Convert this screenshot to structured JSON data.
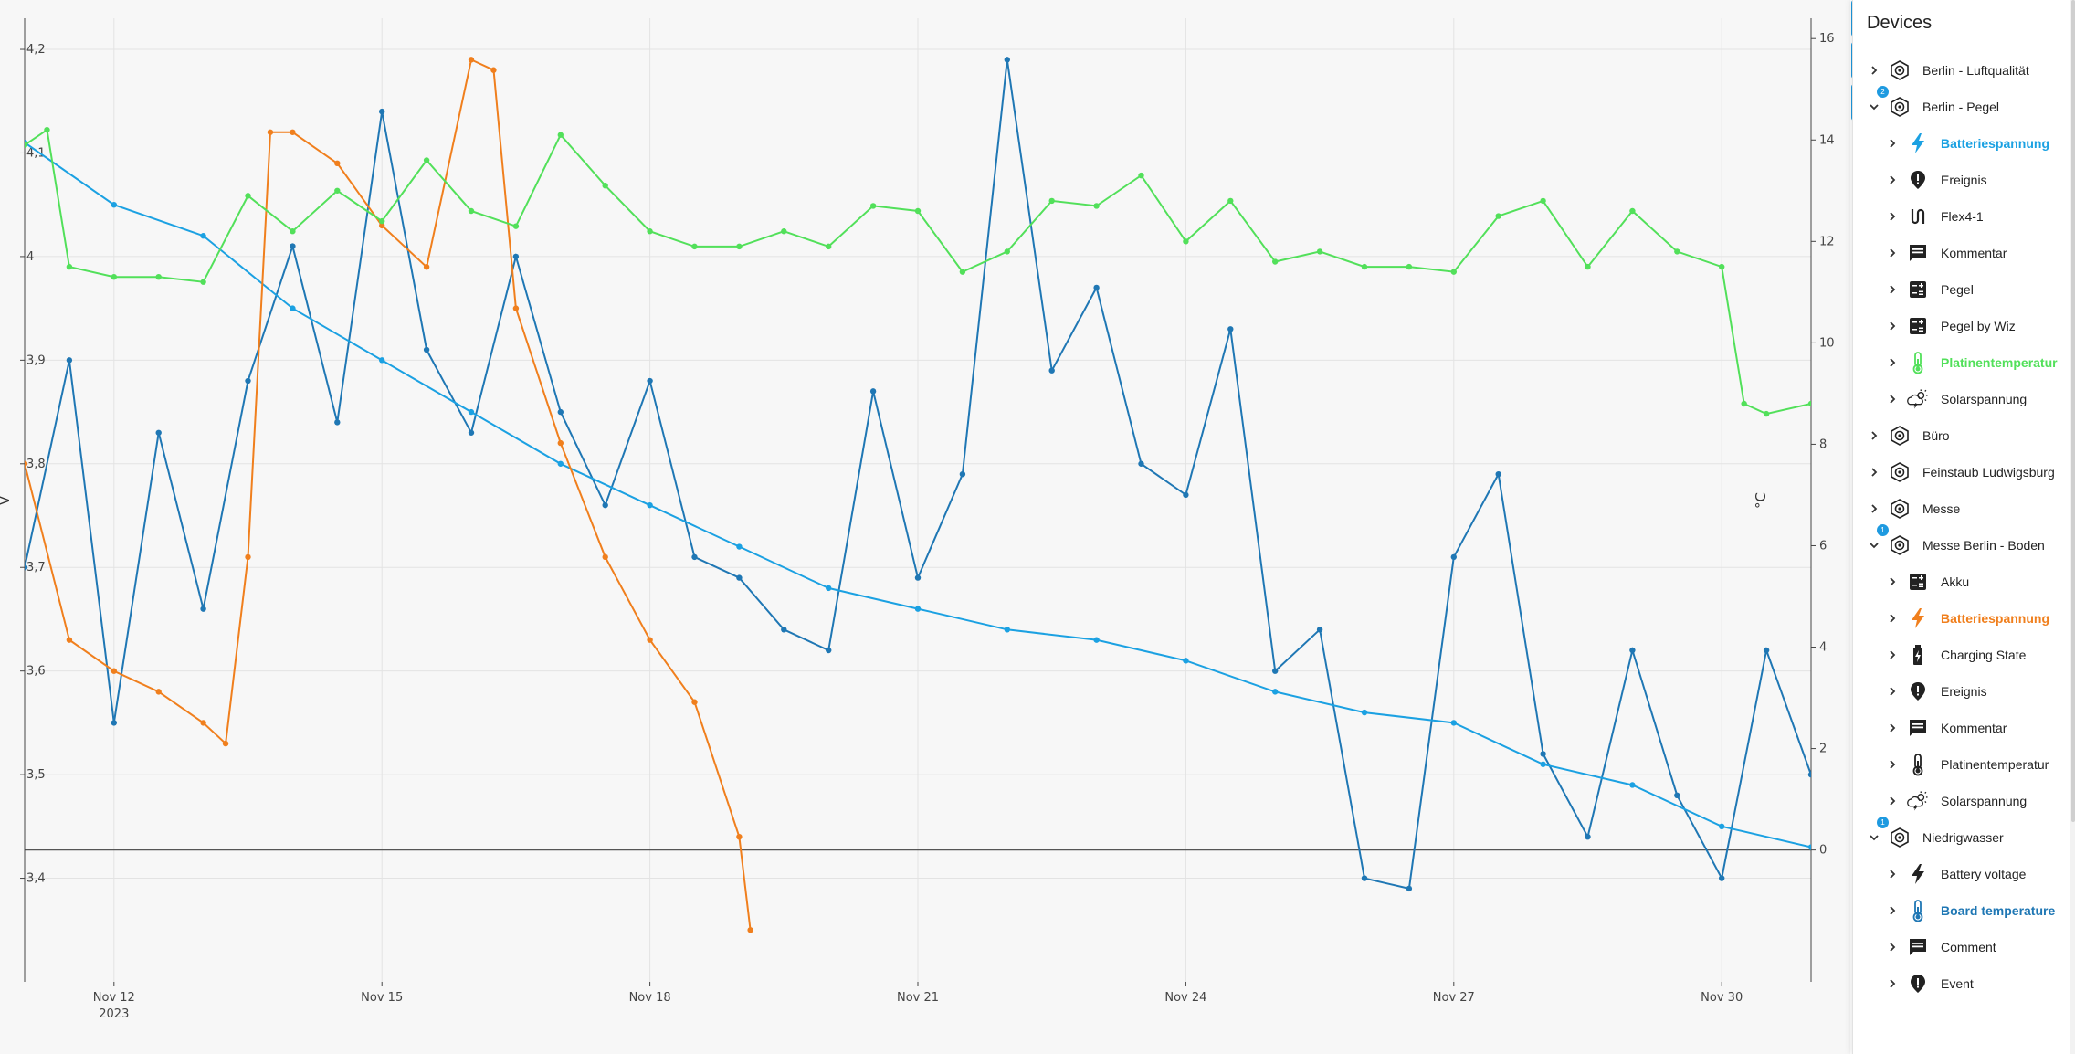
{
  "chart_data": {
    "type": "line",
    "x_axis": {
      "ticks": [
        {
          "date": "2023-11-12",
          "label": "Nov 12",
          "sublabel": "2023"
        },
        {
          "date": "2023-11-15",
          "label": "Nov 15",
          "sublabel": ""
        },
        {
          "date": "2023-11-18",
          "label": "Nov 18",
          "sublabel": ""
        },
        {
          "date": "2023-11-21",
          "label": "Nov 21",
          "sublabel": ""
        },
        {
          "date": "2023-11-24",
          "label": "Nov 24",
          "sublabel": ""
        },
        {
          "date": "2023-11-27",
          "label": "Nov 27",
          "sublabel": ""
        },
        {
          "date": "2023-11-30",
          "label": "Nov 30",
          "sublabel": ""
        }
      ],
      "range": [
        "2023-11-11",
        "2023-12-01"
      ]
    },
    "y_left": {
      "label": "V",
      "ticks": [
        "4,2",
        "4,1",
        "4",
        "3,9",
        "3,8",
        "3,7",
        "3,6",
        "3,5",
        "3,4"
      ],
      "tick_values": [
        4.2,
        4.1,
        4.0,
        3.9,
        3.8,
        3.7,
        3.6,
        3.5,
        3.4
      ],
      "range": [
        3.3,
        4.23
      ]
    },
    "y_right": {
      "label": "°C",
      "ticks": [
        "16",
        "14",
        "12",
        "10",
        "8",
        "6",
        "4",
        "2",
        "0"
      ],
      "tick_values": [
        16,
        14,
        12,
        10,
        8,
        6,
        4,
        2,
        0
      ],
      "range": [
        -2.6,
        16.4
      ]
    },
    "grid": true,
    "series": [
      {
        "color": "#1f77b4",
        "axis": "left",
        "x": [
          "2023-11-11 00:00",
          "2023-11-11 12:00",
          "2023-11-12 00:00",
          "2023-11-12 12:00",
          "2023-11-13 00:00",
          "2023-11-13 12:00",
          "2023-11-14 00:00",
          "2023-11-14 12:00",
          "2023-11-15 00:00",
          "2023-11-15 12:00",
          "2023-11-16 00:00",
          "2023-11-16 12:00",
          "2023-11-17 00:00",
          "2023-11-17 12:00",
          "2023-11-18 00:00",
          "2023-11-18 12:00",
          "2023-11-19 00:00",
          "2023-11-19 12:00",
          "2023-11-20 00:00",
          "2023-11-20 12:00",
          "2023-11-21 00:00",
          "2023-11-21 12:00",
          "2023-11-22 00:00",
          "2023-11-22 12:00",
          "2023-11-23 00:00",
          "2023-11-23 12:00",
          "2023-11-24 00:00",
          "2023-11-24 12:00",
          "2023-11-25 00:00",
          "2023-11-25 12:00",
          "2023-11-26 00:00",
          "2023-11-26 12:00",
          "2023-11-27 00:00",
          "2023-11-27 12:00",
          "2023-11-28 00:00",
          "2023-11-28 12:00",
          "2023-11-29 00:00",
          "2023-11-29 12:00",
          "2023-11-30 00:00",
          "2023-11-30 12:00",
          "2023-12-01 00:00"
        ],
        "y": [
          3.7,
          3.9,
          3.55,
          3.83,
          3.66,
          3.88,
          4.01,
          3.84,
          4.14,
          3.91,
          3.83,
          4.0,
          3.85,
          3.76,
          3.88,
          3.71,
          3.69,
          3.64,
          3.62,
          3.87,
          3.69,
          3.79,
          4.19,
          3.89,
          3.97,
          3.8,
          3.77,
          3.93,
          3.6,
          3.64,
          3.4,
          3.39,
          3.71,
          3.79,
          3.52,
          3.44,
          3.62,
          3.48,
          3.4,
          3.62,
          3.5
        ]
      },
      {
        "color": "#1ba1e2",
        "axis": "left",
        "x": [
          "2023-11-11 00:00",
          "2023-11-12 00:00",
          "2023-11-13 00:00",
          "2023-11-14 00:00",
          "2023-11-15 00:00",
          "2023-11-16 00:00",
          "2023-11-17 00:00",
          "2023-11-18 00:00",
          "2023-11-19 00:00",
          "2023-11-20 00:00",
          "2023-11-21 00:00",
          "2023-11-22 00:00",
          "2023-11-23 00:00",
          "2023-11-24 00:00",
          "2023-11-25 00:00",
          "2023-11-26 00:00",
          "2023-11-27 00:00",
          "2023-11-28 00:00",
          "2023-11-29 00:00",
          "2023-11-30 00:00",
          "2023-12-01 00:00"
        ],
        "y": [
          4.11,
          4.05,
          4.02,
          3.95,
          3.9,
          3.85,
          3.8,
          3.76,
          3.72,
          3.68,
          3.66,
          3.64,
          3.63,
          3.61,
          3.58,
          3.56,
          3.55,
          3.51,
          3.49,
          3.45,
          3.43
        ]
      },
      {
        "color": "#f07f1d",
        "axis": "left",
        "x": [
          "2023-11-11 00:00",
          "2023-11-11 12:00",
          "2023-11-12 00:00",
          "2023-11-12 12:00",
          "2023-11-13 00:00",
          "2023-11-13 06:00",
          "2023-11-13 12:00",
          "2023-11-13 18:00",
          "2023-11-14 00:00",
          "2023-11-14 12:00",
          "2023-11-15 00:00",
          "2023-11-15 12:00",
          "2023-11-16 00:00",
          "2023-11-16 06:00",
          "2023-11-16 12:00",
          "2023-11-17 00:00",
          "2023-11-17 12:00",
          "2023-11-18 00:00",
          "2023-11-18 12:00",
          "2023-11-19 00:00",
          "2023-11-19 03:00"
        ],
        "y": [
          3.8,
          3.63,
          3.6,
          3.58,
          3.55,
          3.53,
          3.71,
          4.12,
          4.12,
          4.09,
          4.03,
          3.99,
          4.19,
          4.18,
          3.95,
          3.82,
          3.71,
          3.63,
          3.57,
          3.44,
          3.35
        ]
      },
      {
        "color": "#52e05a",
        "axis": "right",
        "x": [
          "2023-11-11 00:00",
          "2023-11-11 06:00",
          "2023-11-11 12:00",
          "2023-11-12 00:00",
          "2023-11-12 12:00",
          "2023-11-13 00:00",
          "2023-11-13 12:00",
          "2023-11-14 00:00",
          "2023-11-14 12:00",
          "2023-11-15 00:00",
          "2023-11-15 12:00",
          "2023-11-16 00:00",
          "2023-11-16 12:00",
          "2023-11-17 00:00",
          "2023-11-17 12:00",
          "2023-11-18 00:00",
          "2023-11-18 12:00",
          "2023-11-19 00:00",
          "2023-11-19 12:00",
          "2023-11-20 00:00",
          "2023-11-20 12:00",
          "2023-11-21 00:00",
          "2023-11-21 12:00",
          "2023-11-22 00:00",
          "2023-11-22 12:00",
          "2023-11-23 00:00",
          "2023-11-23 12:00",
          "2023-11-24 00:00",
          "2023-11-24 12:00",
          "2023-11-25 00:00",
          "2023-11-25 12:00",
          "2023-11-26 00:00",
          "2023-11-26 12:00",
          "2023-11-27 00:00",
          "2023-11-27 12:00",
          "2023-11-28 00:00",
          "2023-11-28 12:00",
          "2023-11-29 00:00",
          "2023-11-29 12:00",
          "2023-11-30 00:00",
          "2023-11-30 06:00",
          "2023-11-30 12:00",
          "2023-12-01 00:00"
        ],
        "y": [
          13.9,
          14.2,
          11.5,
          11.3,
          11.3,
          11.2,
          12.9,
          12.2,
          13.0,
          12.4,
          13.6,
          12.6,
          12.3,
          14.1,
          13.1,
          12.2,
          11.9,
          11.9,
          12.2,
          11.9,
          12.7,
          12.6,
          11.4,
          11.8,
          12.8,
          12.7,
          13.3,
          12.0,
          12.8,
          11.6,
          11.8,
          11.5,
          11.5,
          11.4,
          12.5,
          12.8,
          11.5,
          12.6,
          11.8,
          11.5,
          8.8,
          8.6,
          8.8
        ]
      }
    ]
  },
  "toolbar": {
    "buttons": [
      {
        "name": "filter-icon"
      },
      {
        "name": "list-icon"
      },
      {
        "name": "more-vert-icon"
      }
    ]
  },
  "devices_panel": {
    "title": "Devices",
    "items": [
      {
        "label": "Berlin - Luftqualität",
        "level": 0,
        "expanded": false,
        "icon": "device-icon",
        "badge": "",
        "color": "#222222",
        "bold": false
      },
      {
        "label": "Berlin - Pegel",
        "level": 0,
        "expanded": true,
        "icon": "device-icon",
        "badge": "2",
        "color": "#222222",
        "bold": false
      },
      {
        "label": "Batteriespannung",
        "level": 1,
        "expanded": false,
        "icon": "bolt-icon",
        "badge": "",
        "color": "#1ba1e2",
        "bold": true
      },
      {
        "label": "Ereignis",
        "level": 1,
        "expanded": false,
        "icon": "alert-icon",
        "badge": "",
        "color": "#222222",
        "bold": false
      },
      {
        "label": "Flex4-1",
        "level": 1,
        "expanded": false,
        "icon": "flex-icon",
        "badge": "",
        "color": "#222222",
        "bold": false
      },
      {
        "label": "Kommentar",
        "level": 1,
        "expanded": false,
        "icon": "comment-icon",
        "badge": "",
        "color": "#222222",
        "bold": false
      },
      {
        "label": "Pegel",
        "level": 1,
        "expanded": false,
        "icon": "calc-icon",
        "badge": "",
        "color": "#222222",
        "bold": false
      },
      {
        "label": "Pegel by Wiz",
        "level": 1,
        "expanded": false,
        "icon": "calc-icon",
        "badge": "",
        "color": "#222222",
        "bold": false
      },
      {
        "label": "Platinentemperatur",
        "level": 1,
        "expanded": false,
        "icon": "thermometer-icon",
        "badge": "",
        "color": "#52e05a",
        "bold": true
      },
      {
        "label": "Solarspannung",
        "level": 1,
        "expanded": false,
        "icon": "weather-icon",
        "badge": "",
        "color": "#222222",
        "bold": false
      },
      {
        "label": "Büro",
        "level": 0,
        "expanded": false,
        "icon": "device-icon",
        "badge": "",
        "color": "#222222",
        "bold": false
      },
      {
        "label": "Feinstaub Ludwigsburg",
        "level": 0,
        "expanded": false,
        "icon": "device-icon",
        "badge": "",
        "color": "#222222",
        "bold": false
      },
      {
        "label": "Messe",
        "level": 0,
        "expanded": false,
        "icon": "device-icon",
        "badge": "",
        "color": "#222222",
        "bold": false
      },
      {
        "label": "Messe Berlin - Boden",
        "level": 0,
        "expanded": true,
        "icon": "device-icon",
        "badge": "1",
        "color": "#222222",
        "bold": false
      },
      {
        "label": "Akku",
        "level": 1,
        "expanded": false,
        "icon": "calc-icon",
        "badge": "",
        "color": "#222222",
        "bold": false
      },
      {
        "label": "Batteriespannung",
        "level": 1,
        "expanded": false,
        "icon": "bolt-icon",
        "badge": "",
        "color": "#f07f1d",
        "bold": true
      },
      {
        "label": "Charging State",
        "level": 1,
        "expanded": false,
        "icon": "battery-icon",
        "badge": "",
        "color": "#222222",
        "bold": false
      },
      {
        "label": "Ereignis",
        "level": 1,
        "expanded": false,
        "icon": "alert-icon",
        "badge": "",
        "color": "#222222",
        "bold": false
      },
      {
        "label": "Kommentar",
        "level": 1,
        "expanded": false,
        "icon": "comment-icon",
        "badge": "",
        "color": "#222222",
        "bold": false
      },
      {
        "label": "Platinentemperatur",
        "level": 1,
        "expanded": false,
        "icon": "thermometer-icon",
        "badge": "",
        "color": "#222222",
        "bold": false
      },
      {
        "label": "Solarspannung",
        "level": 1,
        "expanded": false,
        "icon": "weather-icon",
        "badge": "",
        "color": "#222222",
        "bold": false
      },
      {
        "label": "Niedrigwasser",
        "level": 0,
        "expanded": true,
        "icon": "device-icon",
        "badge": "1",
        "color": "#222222",
        "bold": false
      },
      {
        "label": "Battery voltage",
        "level": 1,
        "expanded": false,
        "icon": "bolt-icon",
        "badge": "",
        "color": "#222222",
        "bold": false
      },
      {
        "label": "Board temperature",
        "level": 1,
        "expanded": false,
        "icon": "thermometer-icon",
        "badge": "",
        "color": "#1f77b4",
        "bold": true
      },
      {
        "label": "Comment",
        "level": 1,
        "expanded": false,
        "icon": "comment-icon",
        "badge": "",
        "color": "#222222",
        "bold": false
      },
      {
        "label": "Event",
        "level": 1,
        "expanded": false,
        "icon": "alert-icon",
        "badge": "",
        "color": "#222222",
        "bold": false
      }
    ]
  }
}
